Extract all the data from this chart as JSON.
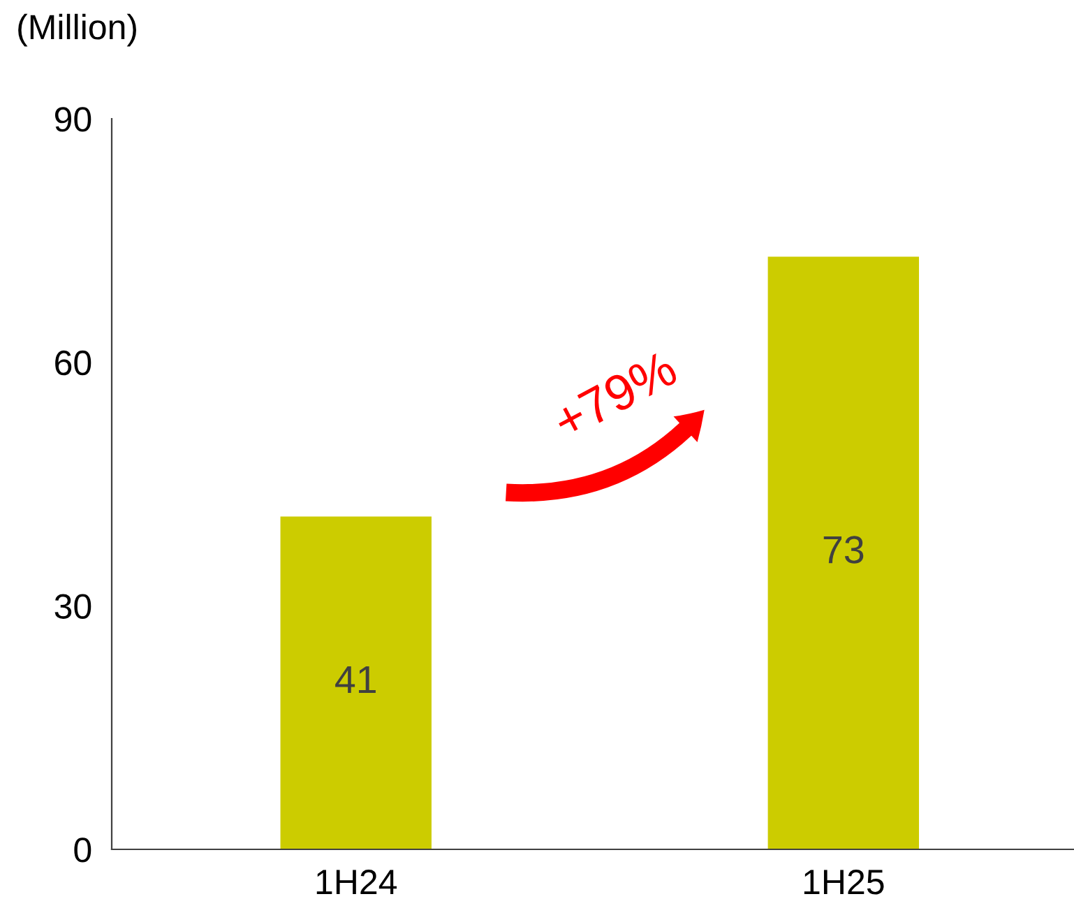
{
  "chart_data": {
    "type": "bar",
    "ylabel": "(Million)",
    "categories": [
      "1H24",
      "1H25"
    ],
    "values": [
      41,
      73
    ],
    "color": "#cccc00",
    "data_labels": true,
    "ylim": [
      0,
      90
    ],
    "yticks": [
      0,
      30,
      60,
      90
    ],
    "grid": false,
    "annotations": [
      "+79%"
    ]
  }
}
